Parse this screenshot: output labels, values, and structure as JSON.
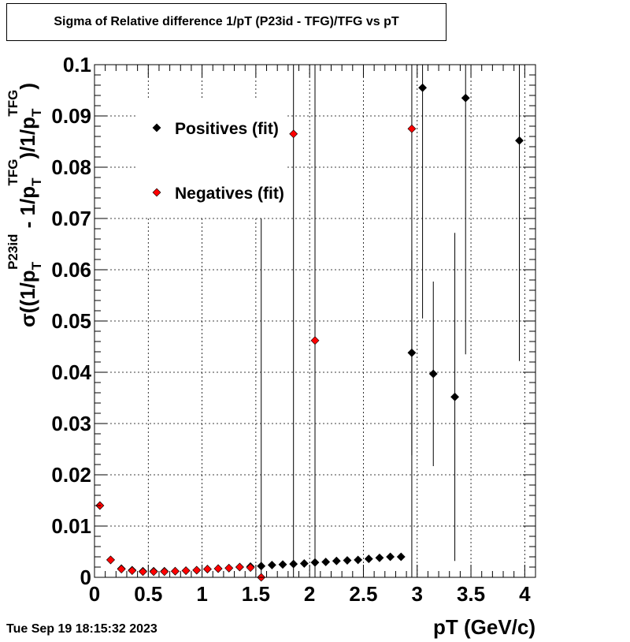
{
  "title": "Sigma of Relative difference 1/pT (P23id - TFG)/TFG vs pT",
  "timestamp": "Tue Sep 19 18:15:32 2023",
  "chart_data": {
    "type": "scatter",
    "title": "Sigma of Relative difference 1/pT (P23id - TFG)/TFG vs pT",
    "xlabel": "pT (GeV/c)",
    "ylabel": {
      "sigma": "σ",
      "p1": "((1/p",
      "sub1": "T",
      "sup1": "P23id",
      "p2": " - 1/p",
      "sub2": "T",
      "sup2": "TFG",
      "p3": ")/1/p",
      "sub3": "T",
      "sup3": "TFG",
      "p4": ")"
    },
    "xlim": [
      0,
      4.1
    ],
    "ylim": [
      0,
      0.1
    ],
    "grid": true,
    "legend_placement": "top-left",
    "xticks": [
      "0",
      "0.5",
      "1",
      "1.5",
      "2",
      "2.5",
      "3",
      "3.5",
      "4"
    ],
    "yticks": [
      "0",
      "0.01",
      "0.02",
      "0.03",
      "0.04",
      "0.05",
      "0.06",
      "0.07",
      "0.08",
      "0.09",
      "0.1"
    ],
    "series": [
      {
        "name": "Positives (fit)",
        "color": "#000000",
        "points": [
          {
            "x": 0.05,
            "y": 0.014
          },
          {
            "x": 0.15,
            "y": 0.0034
          },
          {
            "x": 0.25,
            "y": 0.0017
          },
          {
            "x": 0.35,
            "y": 0.0014
          },
          {
            "x": 0.45,
            "y": 0.0012
          },
          {
            "x": 0.55,
            "y": 0.0012
          },
          {
            "x": 0.65,
            "y": 0.0012
          },
          {
            "x": 0.75,
            "y": 0.0012
          },
          {
            "x": 0.85,
            "y": 0.0013
          },
          {
            "x": 0.95,
            "y": 0.0014
          },
          {
            "x": 1.05,
            "y": 0.0016
          },
          {
            "x": 1.15,
            "y": 0.0017
          },
          {
            "x": 1.25,
            "y": 0.0018
          },
          {
            "x": 1.35,
            "y": 0.002
          },
          {
            "x": 1.45,
            "y": 0.0021
          },
          {
            "x": 1.55,
            "y": 0.0022
          },
          {
            "x": 1.65,
            "y": 0.0024
          },
          {
            "x": 1.75,
            "y": 0.0025
          },
          {
            "x": 1.85,
            "y": 0.0026
          },
          {
            "x": 1.95,
            "y": 0.0027
          },
          {
            "x": 2.05,
            "y": 0.0029
          },
          {
            "x": 2.15,
            "y": 0.003
          },
          {
            "x": 2.25,
            "y": 0.0032
          },
          {
            "x": 2.35,
            "y": 0.0033
          },
          {
            "x": 2.45,
            "y": 0.0034
          },
          {
            "x": 2.55,
            "y": 0.0036
          },
          {
            "x": 2.65,
            "y": 0.0038
          },
          {
            "x": 2.75,
            "y": 0.004
          },
          {
            "x": 2.85,
            "y": 0.004
          },
          {
            "x": 2.95,
            "y": 0.0438,
            "err": 0.02
          },
          {
            "x": 3.05,
            "y": 0.0955,
            "err": 0.045
          },
          {
            "x": 3.15,
            "y": 0.0397,
            "err": 0.018
          },
          {
            "x": 3.35,
            "y": 0.0352,
            "err": 0.032
          },
          {
            "x": 3.45,
            "y": 0.0935,
            "err": 0.05
          },
          {
            "x": 3.95,
            "y": 0.0852,
            "err": 0.043
          }
        ]
      },
      {
        "name": "Negatives (fit)",
        "color": "#ff0000",
        "points": [
          {
            "x": 0.05,
            "y": 0.014
          },
          {
            "x": 0.15,
            "y": 0.0034
          },
          {
            "x": 0.25,
            "y": 0.0016
          },
          {
            "x": 0.35,
            "y": 0.0013
          },
          {
            "x": 0.45,
            "y": 0.0011
          },
          {
            "x": 0.55,
            "y": 0.0011
          },
          {
            "x": 0.65,
            "y": 0.0011
          },
          {
            "x": 0.75,
            "y": 0.0012
          },
          {
            "x": 0.85,
            "y": 0.0013
          },
          {
            "x": 0.95,
            "y": 0.0014
          },
          {
            "x": 1.05,
            "y": 0.0016
          },
          {
            "x": 1.15,
            "y": 0.0017
          },
          {
            "x": 1.25,
            "y": 0.0018
          },
          {
            "x": 1.35,
            "y": 0.002
          },
          {
            "x": 1.45,
            "y": 0.0019
          },
          {
            "x": 1.55,
            "y": 0.0,
            "err": 0.07
          },
          {
            "x": 1.85,
            "y": 0.0865,
            "err": 0.1
          },
          {
            "x": 2.05,
            "y": 0.0462,
            "err": 0.1
          },
          {
            "x": 2.95,
            "y": 0.0875,
            "err": 0.1
          }
        ]
      }
    ]
  }
}
